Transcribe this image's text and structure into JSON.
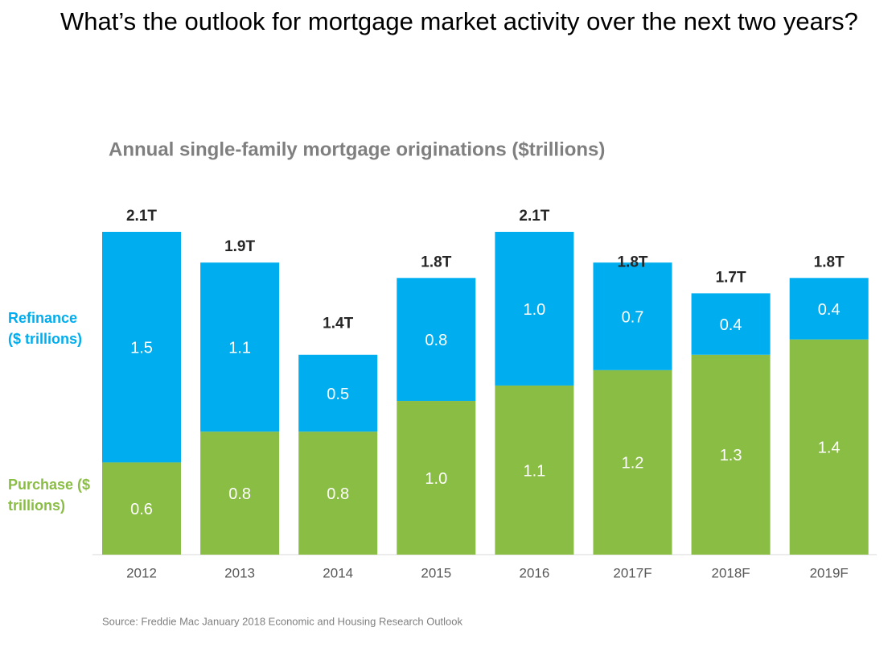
{
  "heading": "What’s the outlook for mortgage market activity over the next two years?",
  "chart_data": {
    "type": "stacked_bar",
    "title": "Annual single-family mortgage originations ($trillions)",
    "categories": [
      "2012",
      "2013",
      "2014",
      "2015",
      "2016",
      "2017F",
      "2018F",
      "2019F"
    ],
    "series": [
      {
        "name": "Purchase ($ trillions)",
        "color": "#8abd43",
        "values": [
          0.6,
          0.8,
          0.8,
          1.0,
          1.1,
          1.2,
          1.3,
          1.4
        ],
        "value_labels": [
          "0.6",
          "0.8",
          "0.8",
          "1.0",
          "1.1",
          "1.2",
          "1.3",
          "1.4"
        ]
      },
      {
        "name": "Refinance ($ trillions)",
        "color": "#00aeef",
        "values": [
          1.5,
          1.1,
          0.5,
          0.8,
          1.0,
          0.7,
          0.4,
          0.4
        ],
        "value_labels": [
          "1.5",
          "1.1",
          "0.5",
          "0.8",
          "1.0",
          "0.7",
          "0.4",
          "0.4"
        ]
      }
    ],
    "totals": {
      "values": [
        2.1,
        1.9,
        1.4,
        1.8,
        2.1,
        1.8,
        1.7,
        1.8
      ],
      "value_labels": [
        "2.1T",
        "1.9T",
        "1.4T",
        "1.8T",
        "2.1T",
        "1.8T",
        "1.7T",
        "1.8T"
      ]
    },
    "source": "Source: Freddie Mac January 2018 Economic and Housing Research Outlook"
  }
}
